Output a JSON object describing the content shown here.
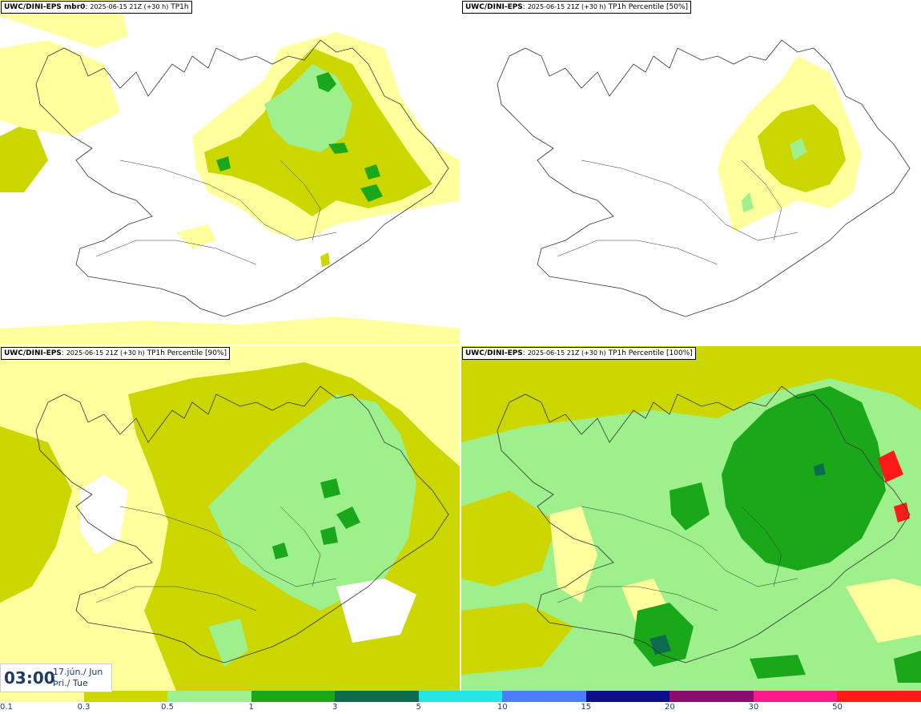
{
  "panels": [
    {
      "id": "tl",
      "model": "UWC/DINI-EPS mbr0",
      "run": "2025-06-15 21Z (+30 h)",
      "param": "TP1h"
    },
    {
      "id": "tr",
      "model": "UWC/DINI-EPS",
      "run": "2025-06-15 21Z (+30 h)",
      "param": "TP1h Percentile [50%]"
    },
    {
      "id": "bl",
      "model": "UWC/DINI-EPS",
      "run": "2025-06-15 21Z (+30 h)",
      "param": "TP1h Percentile [90%]"
    },
    {
      "id": "br",
      "model": "UWC/DINI-EPS",
      "run": "2025-06-15 21Z (+30 h)",
      "param": "TP1h Percentile [100%]"
    }
  ],
  "valid_time": {
    "time": "03:00",
    "date_line1": "17.jún./ Jun",
    "date_line2": "Þri./ Tue"
  },
  "legend": {
    "colors": [
      "#ffff9e",
      "#ccd600",
      "#9ef08c",
      "#1aa81a",
      "#0f6b4e",
      "#22e5e5",
      "#4a7dff",
      "#0c0c8c",
      "#8c0c6e",
      "#ff1a8c",
      "#ff1a1a"
    ],
    "ticks": [
      "0.1",
      "0.3",
      "0.5",
      "1",
      "3",
      "5",
      "10",
      "15",
      "20",
      "30",
      "50"
    ]
  },
  "field_colors": {
    "light": "#ffff9e",
    "olive": "#ccd600",
    "lightgreen": "#9ef08c",
    "green": "#1aa81a",
    "dark": "#0f6b4e"
  }
}
